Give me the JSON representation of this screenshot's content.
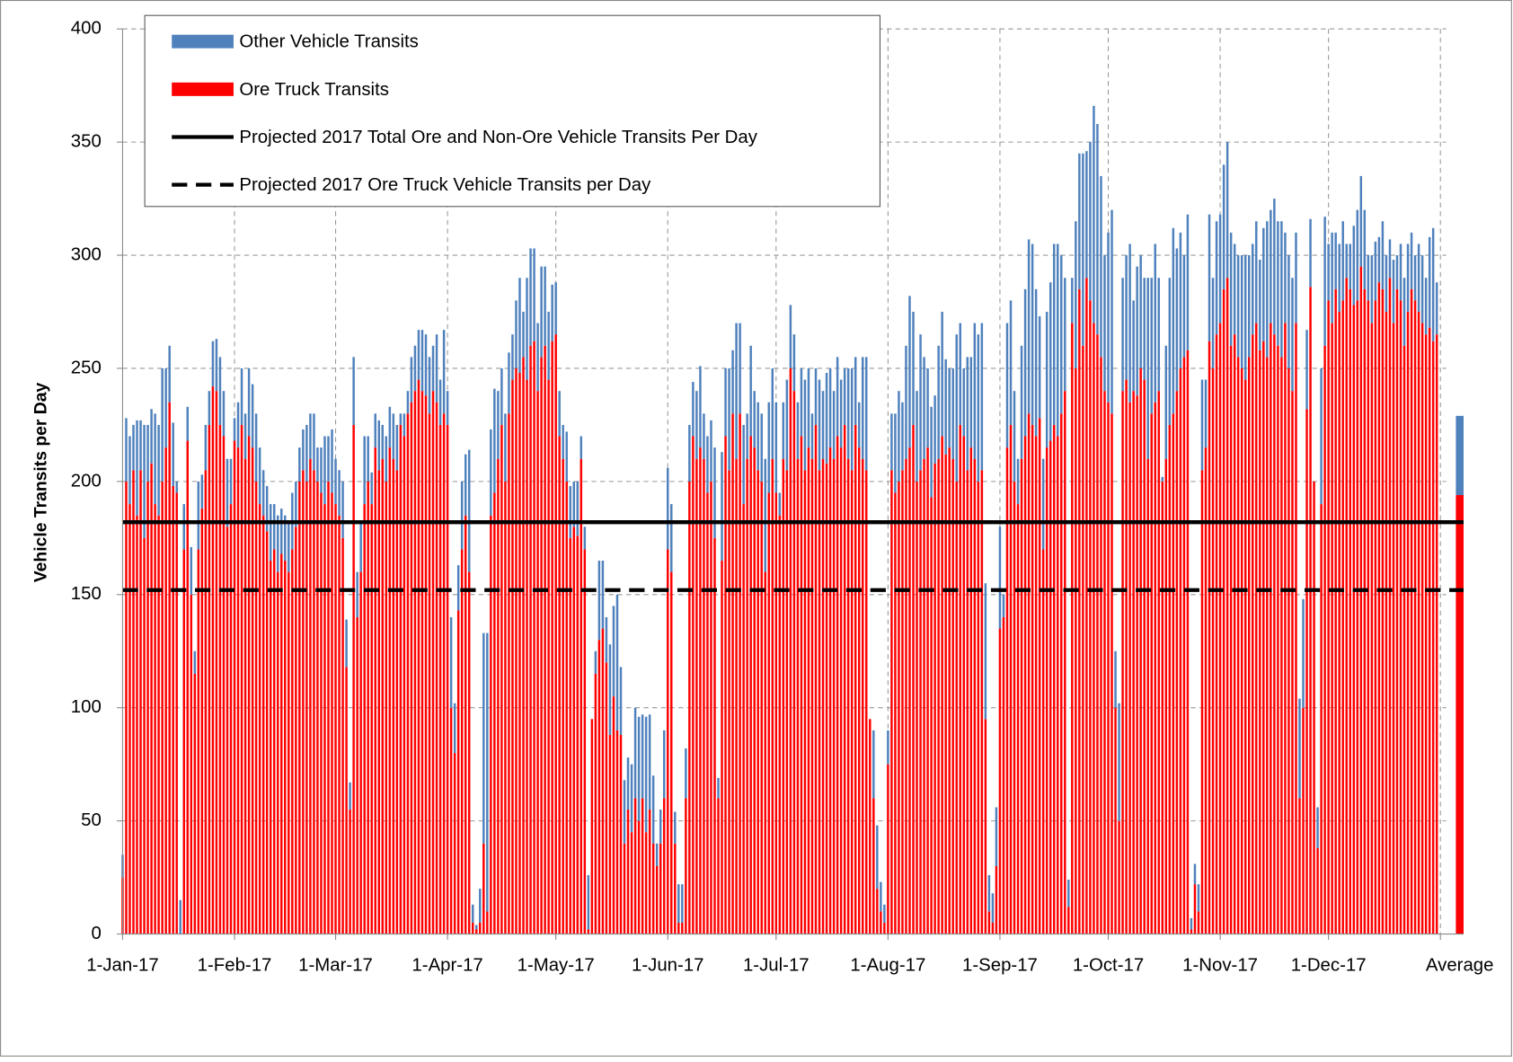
{
  "chart_data": {
    "type": "stacked-bar",
    "y_label": "Vehicle Transits per Day",
    "ylim": [
      0,
      400
    ],
    "yticks": [
      0,
      50,
      100,
      150,
      200,
      250,
      300,
      350,
      400
    ],
    "grid": true,
    "legend": "top-left",
    "categories": [
      "1-Jan-17",
      null,
      null,
      null,
      null,
      null,
      null,
      null,
      null,
      null,
      null,
      null,
      null,
      null,
      null,
      null,
      null,
      null,
      null,
      null,
      null,
      null,
      null,
      null,
      null,
      null,
      null,
      null,
      null,
      null,
      null,
      "1-Feb-17",
      null,
      null,
      null,
      null,
      null,
      null,
      null,
      null,
      null,
      null,
      null,
      null,
      null,
      null,
      null,
      null,
      null,
      null,
      null,
      null,
      null,
      null,
      null,
      null,
      null,
      null,
      null,
      "1-Mar-17",
      null,
      null,
      null,
      null,
      null,
      null,
      null,
      null,
      null,
      null,
      null,
      null,
      null,
      null,
      null,
      null,
      null,
      null,
      null,
      null,
      null,
      null,
      null,
      null,
      null,
      null,
      null,
      null,
      null,
      null,
      "1-Apr-17",
      null,
      null,
      null,
      null,
      null,
      null,
      null,
      null,
      null,
      null,
      null,
      null,
      null,
      null,
      null,
      null,
      null,
      null,
      null,
      null,
      null,
      null,
      null,
      null,
      null,
      null,
      null,
      null,
      null,
      "1-May-17",
      null,
      null,
      null,
      null,
      null,
      null,
      null,
      null,
      null,
      null,
      null,
      null,
      null,
      null,
      null,
      null,
      null,
      null,
      null,
      null,
      null,
      null,
      null,
      null,
      null,
      null,
      null,
      null,
      null,
      null,
      "1-Jun-17",
      null,
      null,
      null,
      null,
      null,
      null,
      null,
      null,
      null,
      null,
      null,
      null,
      null,
      null,
      null,
      null,
      null,
      null,
      null,
      null,
      null,
      null,
      null,
      null,
      null,
      null,
      null,
      null,
      null,
      "1-Jul-17",
      null,
      null,
      null,
      null,
      null,
      null,
      null,
      null,
      null,
      null,
      null,
      null,
      null,
      null,
      null,
      null,
      null,
      null,
      null,
      null,
      null,
      null,
      null,
      null,
      null,
      null,
      null,
      null,
      null,
      null,
      "1-Aug-17",
      null,
      null,
      null,
      null,
      null,
      null,
      null,
      null,
      null,
      null,
      null,
      null,
      null,
      null,
      null,
      null,
      null,
      null,
      null,
      null,
      null,
      null,
      null,
      null,
      null,
      null,
      null,
      null,
      null,
      null,
      "1-Sep-17",
      null,
      null,
      null,
      null,
      null,
      null,
      null,
      null,
      null,
      null,
      null,
      null,
      null,
      null,
      null,
      null,
      null,
      null,
      null,
      null,
      null,
      null,
      null,
      null,
      null,
      null,
      null,
      null,
      null,
      "1-Oct-17",
      null,
      null,
      null,
      null,
      null,
      null,
      null,
      null,
      null,
      null,
      null,
      null,
      null,
      null,
      null,
      null,
      null,
      null,
      null,
      null,
      null,
      null,
      null,
      null,
      null,
      null,
      null,
      null,
      null,
      null,
      "1-Nov-17",
      null,
      null,
      null,
      null,
      null,
      null,
      null,
      null,
      null,
      null,
      null,
      null,
      null,
      null,
      null,
      null,
      null,
      null,
      null,
      null,
      null,
      null,
      null,
      null,
      null,
      null,
      null,
      null,
      null,
      "1-Dec-17",
      null,
      null,
      null,
      null,
      null,
      null,
      null,
      null,
      null,
      null,
      null,
      null,
      null,
      null,
      null,
      null,
      null,
      null,
      null,
      null,
      null,
      null,
      null,
      null,
      null,
      null,
      null,
      null,
      null,
      null,
      "Average"
    ],
    "series": [
      {
        "name": "Other Vehicle Transits",
        "color": "#4f81bd",
        "values": [
          10,
          28,
          30,
          20,
          42,
          22,
          50,
          25,
          24,
          40,
          40,
          50,
          35,
          25,
          28,
          5,
          15,
          20,
          15,
          21,
          10,
          30,
          15,
          20,
          15,
          20,
          23,
          30,
          20,
          30,
          20,
          10,
          20,
          25,
          20,
          30,
          28,
          30,
          25,
          20,
          20,
          25,
          20,
          25,
          20,
          20,
          22,
          25,
          20,
          15,
          18,
          25,
          20,
          25,
          15,
          20,
          30,
          20,
          28,
          20,
          20,
          25,
          21,
          12,
          30,
          20,
          22,
          30,
          20,
          14,
          15,
          22,
          15,
          20,
          18,
          20,
          20,
          5,
          10,
          10,
          20,
          20,
          22,
          27,
          27,
          25,
          20,
          30,
          20,
          37,
          15,
          40,
          22,
          20,
          30,
          27,
          54,
          8,
          2,
          15,
          93,
          123,
          38,
          46,
          30,
          25,
          30,
          27,
          20,
          30,
          42,
          20,
          45,
          43,
          41,
          30,
          40,
          35,
          30,
          25,
          23,
          20,
          15,
          22,
          23,
          20,
          24,
          10,
          10,
          24,
          0,
          10,
          35,
          30,
          20,
          40,
          40,
          60,
          30,
          28,
          23,
          30,
          40,
          46,
          37,
          51,
          42,
          30,
          10,
          15,
          30,
          36,
          30,
          14,
          17,
          17,
          22,
          25,
          24,
          30,
          36,
          20,
          25,
          27,
          40,
          9,
          48,
          30,
          45,
          28,
          60,
          40,
          35,
          20,
          40,
          25,
          30,
          30,
          50,
          40,
          40,
          40,
          10,
          25,
          40,
          28,
          25,
          25,
          30,
          40,
          35,
          20,
          25,
          40,
          30,
          40,
          35,
          30,
          35,
          30,
          25,
          40,
          45,
          30,
          20,
          45,
          50,
          0,
          30,
          28,
          13,
          8,
          15,
          25,
          35,
          40,
          30,
          50,
          67,
          50,
          40,
          60,
          45,
          35,
          40,
          30,
          50,
          55,
          42,
          35,
          40,
          65,
          45,
          30,
          50,
          40,
          60,
          65,
          65,
          60,
          16,
          13,
          26,
          45,
          10,
          55,
          55,
          40,
          20,
          50,
          65,
          77,
          80,
          65,
          45,
          40,
          60,
          70,
          80,
          85,
          70,
          50,
          12,
          20,
          65,
          60,
          85,
          56,
          70,
          96,
          93,
          80,
          60,
          75,
          90,
          25,
          52,
          50,
          55,
          70,
          40,
          57,
          50,
          45,
          80,
          60,
          70,
          50,
          2,
          50,
          65,
          82,
          63,
          60,
          45,
          60,
          5,
          9,
          12,
          40,
          30,
          56,
          40,
          50,
          48,
          55,
          60,
          50,
          40,
          45,
          50,
          55,
          45,
          40,
          45,
          40,
          50,
          60,
          50,
          60,
          55,
          60,
          40,
          50,
          50,
          40,
          44,
          48,
          35,
          30,
          0,
          18,
          60,
          57,
          25,
          40,
          25,
          30,
          35,
          15,
          20,
          35,
          40,
          40,
          35,
          20,
          30,
          26,
          20,
          30,
          25,
          17,
          28,
          15,
          25,
          30,
          30,
          25,
          20,
          30,
          30,
          25,
          40,
          50,
          23,
          35
        ]
      },
      {
        "name": "Ore Truck Transits",
        "color": "#ff0000",
        "values": [
          25,
          200,
          190,
          205,
          185,
          205,
          175,
          200,
          208,
          190,
          185,
          200,
          215,
          235,
          198,
          195,
          0,
          170,
          218,
          150,
          115,
          170,
          188,
          205,
          225,
          242,
          240,
          225,
          220,
          180,
          190,
          218,
          215,
          225,
          210,
          220,
          215,
          200,
          190,
          185,
          178,
          165,
          170,
          160,
          168,
          165,
          160,
          170,
          180,
          200,
          205,
          200,
          210,
          205,
          200,
          195,
          190,
          200,
          195,
          190,
          185,
          175,
          118,
          55,
          225,
          140,
          160,
          190,
          200,
          190,
          215,
          205,
          210,
          200,
          215,
          210,
          205,
          225,
          220,
          230,
          235,
          240,
          245,
          240,
          238,
          230,
          240,
          235,
          225,
          230,
          225,
          100,
          80,
          143,
          170,
          185,
          160,
          5,
          2,
          5,
          40,
          10,
          185,
          195,
          210,
          225,
          200,
          230,
          245,
          250,
          248,
          255,
          245,
          260,
          262,
          240,
          255,
          260,
          245,
          262,
          265,
          220,
          210,
          200,
          175,
          180,
          176,
          210,
          170,
          2,
          95,
          115,
          130,
          135,
          120,
          88,
          105,
          90,
          88,
          40,
          55,
          45,
          60,
          50,
          60,
          45,
          55,
          40,
          30,
          40,
          60,
          170,
          160,
          40,
          5,
          5,
          60,
          200,
          220,
          210,
          215,
          210,
          195,
          200,
          175,
          60,
          165,
          220,
          205,
          230,
          210,
          230,
          190,
          210,
          220,
          215,
          205,
          200,
          160,
          195,
          210,
          195,
          185,
          210,
          205,
          250,
          240,
          210,
          220,
          205,
          215,
          210,
          225,
          205,
          210,
          208,
          215,
          210,
          220,
          215,
          225,
          210,
          205,
          225,
          215,
          210,
          205,
          95,
          60,
          20,
          10,
          5,
          75,
          205,
          195,
          200,
          205,
          210,
          215,
          225,
          200,
          205,
          210,
          215,
          193,
          208,
          210,
          220,
          212,
          215,
          210,
          200,
          225,
          220,
          205,
          215,
          210,
          200,
          205,
          95,
          10,
          5,
          30,
          135,
          140,
          215,
          225,
          200,
          190,
          210,
          220,
          230,
          225,
          220,
          228,
          170,
          215,
          218,
          225,
          220,
          230,
          240,
          12,
          270,
          250,
          285,
          260,
          290,
          280,
          270,
          265,
          255,
          240,
          235,
          230,
          100,
          50,
          240,
          245,
          235,
          240,
          238,
          250,
          245,
          210,
          230,
          235,
          240,
          200,
          210,
          225,
          230,
          240,
          250,
          255,
          258,
          2,
          22,
          10,
          205,
          215,
          262,
          250,
          265,
          270,
          285,
          290,
          260,
          265,
          255,
          250,
          245,
          255,
          265,
          270,
          258,
          262,
          255,
          270,
          265,
          260,
          255,
          270,
          250,
          240,
          270,
          60,
          100,
          232,
          286,
          200,
          38,
          190,
          260,
          280,
          270,
          285,
          275,
          280,
          290,
          285,
          278,
          280,
          295,
          285,
          280,
          270,
          280,
          288,
          285,
          275,
          290,
          270,
          285,
          280,
          260,
          275,
          285,
          280,
          275,
          270,
          265,
          268,
          262,
          265,
          194
        ]
      }
    ],
    "lines": [
      {
        "name": "Projected 2017 Total Ore and Non-Ore Vehicle Transits Per Day",
        "value": 182,
        "color": "#000000",
        "dashed": false
      },
      {
        "name": "Projected 2017 Ore Truck Vehicle Transits per Day",
        "value": 152,
        "color": "#000000",
        "dashed": true
      }
    ]
  }
}
